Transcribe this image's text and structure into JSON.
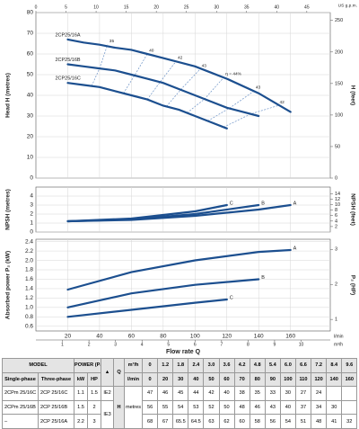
{
  "chart_data": [
    {
      "type": "line",
      "ylabel": "Head H (metres)",
      "y2label": "H (feet)",
      "xlim": [
        0,
        185
      ],
      "ylim": [
        0,
        80
      ],
      "yticks": [
        0,
        10,
        20,
        30,
        40,
        50,
        60,
        70,
        80
      ],
      "y2lim": [
        0,
        262.5
      ],
      "y2ticks": [
        0,
        50,
        100,
        150,
        200,
        250
      ],
      "x2label": "US g.p.m.",
      "x2lim": [
        0,
        48.9
      ],
      "x2ticks": [
        0,
        5,
        10,
        15,
        20,
        25,
        30,
        35,
        40,
        45
      ],
      "grid": true,
      "series": [
        {
          "name": "2CP25/16A",
          "color": "#1c4f8f",
          "x": [
            20,
            30,
            40,
            50,
            60,
            70,
            80,
            90,
            100,
            110,
            120,
            140,
            160
          ],
          "values": [
            67,
            65.5,
            64.5,
            63,
            62,
            60,
            58,
            56,
            54,
            51,
            48,
            41,
            32
          ]
        },
        {
          "name": "2CP25/16B",
          "color": "#1c4f8f",
          "x": [
            20,
            30,
            40,
            50,
            60,
            70,
            80,
            90,
            100,
            110,
            120,
            140
          ],
          "values": [
            55,
            54,
            53,
            52,
            50,
            48,
            46,
            43,
            40,
            37,
            34,
            30
          ]
        },
        {
          "name": "2CP25/16C",
          "color": "#1c4f8f",
          "x": [
            20,
            30,
            40,
            50,
            60,
            70,
            80,
            90,
            100,
            110,
            120
          ],
          "values": [
            46,
            45,
            44,
            42,
            40,
            38,
            35,
            33,
            30,
            27,
            24
          ]
        }
      ],
      "efficiency_lines": [
        {
          "name": "35",
          "x": [
            35,
            40,
            45
          ],
          "values": [
            44.5,
            53,
            64.5
          ]
        },
        {
          "name": "40",
          "x": [
            55,
            62,
            70
          ],
          "values": [
            41,
            49.6,
            60
          ]
        },
        {
          "name": "42",
          "x": [
            70,
            78,
            88
          ],
          "values": [
            38,
            46.4,
            56.4
          ]
        },
        {
          "name": "43",
          "x": [
            82,
            92,
            103
          ],
          "values": [
            34.6,
            43.6,
            52.5
          ]
        },
        {
          "name": "η = 44%",
          "x": [
            95,
            106,
            118
          ],
          "values": [
            31.5,
            38.2,
            48.6
          ]
        },
        {
          "name": "43",
          "x": [
            108,
            122,
            137
          ],
          "values": [
            27.6,
            34,
            42
          ]
        },
        {
          "name": "42",
          "x": [
            118,
            135,
            152
          ],
          "values": [
            24.6,
            31,
            35
          ]
        }
      ]
    },
    {
      "type": "line",
      "ylabel": "NPSH (metres)",
      "y2label": "NPSH (feet)",
      "xlim": [
        0,
        185
      ],
      "ylim": [
        0,
        5
      ],
      "yticks": [
        0,
        1,
        2,
        3,
        4
      ],
      "y2lim": [
        0,
        16.4
      ],
      "y2ticks": [
        2,
        4,
        6,
        8,
        10,
        12,
        14
      ],
      "grid": true,
      "series": [
        {
          "name": "A",
          "color": "#1c4f8f",
          "x": [
            20,
            60,
            100,
            140,
            160
          ],
          "values": [
            1.2,
            1.35,
            1.8,
            2.5,
            3.0
          ]
        },
        {
          "name": "B",
          "color": "#1c4f8f",
          "x": [
            20,
            60,
            100,
            140
          ],
          "values": [
            1.2,
            1.4,
            2.0,
            3.0
          ]
        },
        {
          "name": "C",
          "color": "#1c4f8f",
          "x": [
            20,
            60,
            100,
            120
          ],
          "values": [
            1.2,
            1.5,
            2.3,
            3.0
          ]
        }
      ]
    },
    {
      "type": "line",
      "ylabel": "Absorbed power P₂ (kW)",
      "y2label": "P₂ (HP)",
      "xlim": [
        0,
        185
      ],
      "ylim": [
        0.5,
        2.45
      ],
      "yticks": [
        0.6,
        0.8,
        {
          "value": 1,
          "label": "1.0"
        },
        1.2,
        1.4,
        1.6,
        1.8,
        {
          "value": 2,
          "label": "2.0"
        },
        2.2,
        2.4
      ],
      "y2lim": [
        0.67,
        3.29
      ],
      "y2ticks": [
        1,
        2,
        3
      ],
      "grid": true,
      "xlabel": "Flow rate Q",
      "xunit": "l/min",
      "xticks": [
        20,
        40,
        60,
        80,
        100,
        120,
        140,
        160
      ],
      "x3unit": "m³/h",
      "x3lim": [
        0,
        11.1
      ],
      "x3ticks": [
        1,
        2,
        3,
        4,
        5,
        6,
        7,
        8,
        9,
        10
      ],
      "series": [
        {
          "name": "A",
          "color": "#1c4f8f",
          "x": [
            20,
            60,
            100,
            140,
            160
          ],
          "values": [
            1.38,
            1.75,
            2.0,
            2.18,
            2.22
          ]
        },
        {
          "name": "B",
          "color": "#1c4f8f",
          "x": [
            20,
            60,
            100,
            140
          ],
          "values": [
            1.0,
            1.3,
            1.48,
            1.6
          ]
        },
        {
          "name": "C",
          "color": "#1c4f8f",
          "x": [
            20,
            60,
            100,
            120
          ],
          "values": [
            0.8,
            0.95,
            1.1,
            1.17
          ]
        }
      ]
    }
  ],
  "table": {
    "model": "MODEL",
    "single": "Single-phase",
    "three": "Three-phase",
    "power": "POWER (P₂)",
    "kw": "kW",
    "hp": "HP",
    "class_icon": "▲",
    "q": "Q",
    "m3h_unit": "m³/h",
    "lmin_unit": "l/min",
    "h": "H",
    "h_unit": "metres",
    "m3h": [
      "0",
      "1.2",
      "1.8",
      "2.4",
      "3.0",
      "3.6",
      "4.2",
      "4.8",
      "5.4",
      "6.0",
      "6.6",
      "7.2",
      "8.4",
      "9.6"
    ],
    "lmin": [
      0,
      20,
      30,
      40,
      50,
      60,
      70,
      80,
      90,
      100,
      110,
      120,
      140,
      160
    ],
    "rows": [
      {
        "single": "2CPm 25/16C",
        "three": "2CP 25/16C",
        "kw": 1.1,
        "hp": 1.5,
        "class": "IE2",
        "h": [
          47,
          46,
          45,
          44,
          42,
          40,
          38,
          35,
          33,
          30,
          27,
          24,
          null,
          null
        ]
      },
      {
        "single": "2CPm 25/16B",
        "three": "2CP 25/16B",
        "kw": 1.5,
        "hp": 2,
        "class": "IE3",
        "h": [
          56,
          55,
          54,
          53,
          52,
          50,
          48,
          46,
          43,
          40,
          37,
          34,
          30,
          null
        ]
      },
      {
        "single": "–",
        "three": "2CP 25/16A",
        "kw": 2.2,
        "hp": 3,
        "h": [
          68,
          67,
          65.5,
          64.5,
          63,
          62,
          60,
          58,
          56,
          54,
          51,
          48,
          41,
          32
        ]
      }
    ]
  }
}
